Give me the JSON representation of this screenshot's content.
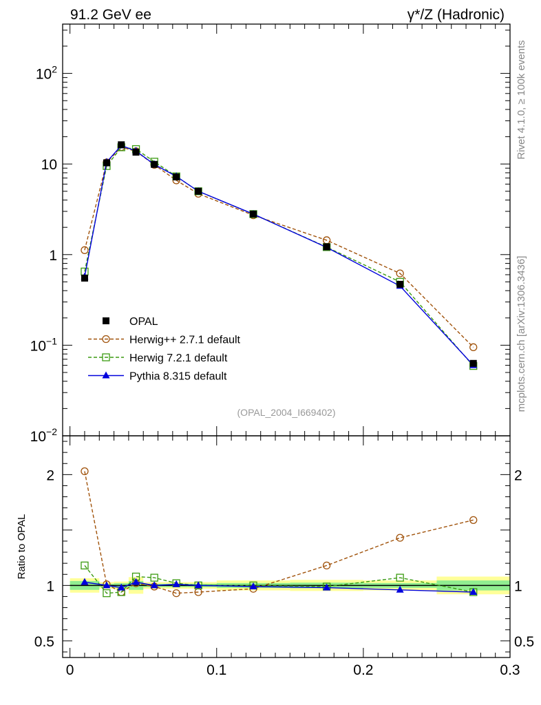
{
  "header": {
    "left": "91.2 GeV ee",
    "right": "γ*/Z (Hadronic)"
  },
  "side_labels": {
    "rivet": "Rivet 4.1.0, ≥ 100k events",
    "mcplots": "mcplots.cern.ch [arXiv:1306.3436]"
  },
  "analysis_id": "(OPAL_2004_I669402)",
  "colors": {
    "opal": "#000000",
    "herwigpp": "#a0520a",
    "herwig7": "#3a9a10",
    "pythia": "#0000dd",
    "band_outer": "#ffff99",
    "band_inner": "#90ee90"
  },
  "chart_data": [
    {
      "type": "line",
      "title": "91.2 GeV ee",
      "yscale": "log",
      "ylim": [
        0.01,
        350
      ],
      "xlim": [
        -0.005,
        0.3
      ],
      "ytick_labels": [
        "10^-2",
        "10^-1",
        "1",
        "10",
        "10^2"
      ],
      "legend_position": "lower-left",
      "series": [
        {
          "name": "OPAL",
          "key": "opal",
          "marker": "square-filled",
          "x": [
            0.01,
            0.025,
            0.035,
            0.045,
            0.0575,
            0.0725,
            0.0875,
            0.125,
            0.175,
            0.225,
            0.275
          ],
          "y": [
            0.55,
            10.3,
            16.3,
            13.5,
            9.9,
            7.2,
            5.0,
            2.8,
            1.22,
            0.47,
            0.063
          ]
        },
        {
          "name": "Herwig++ 2.7.1 default",
          "key": "herwigpp",
          "marker": "circle-open",
          "dash": true,
          "x": [
            0.01,
            0.025,
            0.035,
            0.045,
            0.0575,
            0.0725,
            0.0875,
            0.125,
            0.175,
            0.225,
            0.275
          ],
          "y": [
            1.12,
            10.4,
            15.4,
            13.8,
            9.8,
            6.6,
            4.7,
            2.72,
            1.44,
            0.62,
            0.095
          ]
        },
        {
          "name": "Herwig 7.2.1 default",
          "key": "herwig7",
          "marker": "square-open",
          "dash": true,
          "x": [
            0.01,
            0.025,
            0.035,
            0.045,
            0.0575,
            0.0725,
            0.0875,
            0.125,
            0.175,
            0.225,
            0.275
          ],
          "y": [
            0.65,
            9.5,
            15.3,
            14.6,
            10.6,
            7.3,
            5.0,
            2.8,
            1.21,
            0.5,
            0.059
          ]
        },
        {
          "name": "Pythia 8.315 default",
          "key": "pythia",
          "marker": "triangle-filled",
          "x": [
            0.01,
            0.025,
            0.035,
            0.045,
            0.0575,
            0.0725,
            0.0875,
            0.125,
            0.175,
            0.225,
            0.275
          ],
          "y": [
            0.57,
            10.5,
            16.0,
            13.9,
            9.9,
            7.3,
            5.0,
            2.8,
            1.2,
            0.45,
            0.06
          ]
        }
      ]
    },
    {
      "type": "line",
      "ylabel": "Ratio to OPAL",
      "xlim": [
        -0.005,
        0.3
      ],
      "ylim": [
        0.35,
        2.35
      ],
      "ytick_labels": [
        "0.5",
        "1",
        "2"
      ],
      "xtick_labels": [
        "0",
        "0.1",
        "0.2",
        "0.3"
      ],
      "bands": {
        "edges": [
          0.0,
          0.02,
          0.03,
          0.04,
          0.05,
          0.065,
          0.08,
          0.1,
          0.15,
          0.2,
          0.25,
          0.3
        ],
        "outer": [
          0.065,
          0.03,
          0.035,
          0.075,
          0.03,
          0.03,
          0.03,
          0.045,
          0.05,
          0.045,
          0.08
        ],
        "inner": [
          0.04,
          0.015,
          0.02,
          0.04,
          0.015,
          0.015,
          0.015,
          0.022,
          0.025,
          0.022,
          0.045
        ]
      },
      "series": [
        {
          "name": "Herwig++ 2.7.1 default",
          "key": "herwigpp",
          "marker": "circle-open",
          "dash": true,
          "x": [
            0.01,
            0.025,
            0.035,
            0.045,
            0.0575,
            0.0725,
            0.0875,
            0.125,
            0.175,
            0.225,
            0.275
          ],
          "y": [
            2.03,
            1.01,
            0.94,
            1.02,
            0.99,
            0.93,
            0.94,
            0.97,
            1.18,
            1.43,
            1.59
          ]
        },
        {
          "name": "Herwig 7.2.1 default",
          "key": "herwig7",
          "marker": "square-open",
          "dash": true,
          "x": [
            0.01,
            0.025,
            0.035,
            0.045,
            0.0575,
            0.0725,
            0.0875,
            0.125,
            0.175,
            0.225,
            0.275
          ],
          "y": [
            1.18,
            0.93,
            0.94,
            1.08,
            1.07,
            1.02,
            1.0,
            1.0,
            0.99,
            1.07,
            0.94
          ]
        },
        {
          "name": "Pythia 8.315 default",
          "key": "pythia",
          "marker": "triangle-filled",
          "x": [
            0.01,
            0.025,
            0.035,
            0.045,
            0.0575,
            0.0725,
            0.0875,
            0.125,
            0.175,
            0.225,
            0.275
          ],
          "y": [
            1.03,
            1.0,
            0.98,
            1.03,
            1.0,
            1.01,
            1.0,
            0.99,
            0.98,
            0.96,
            0.94
          ]
        }
      ]
    }
  ]
}
